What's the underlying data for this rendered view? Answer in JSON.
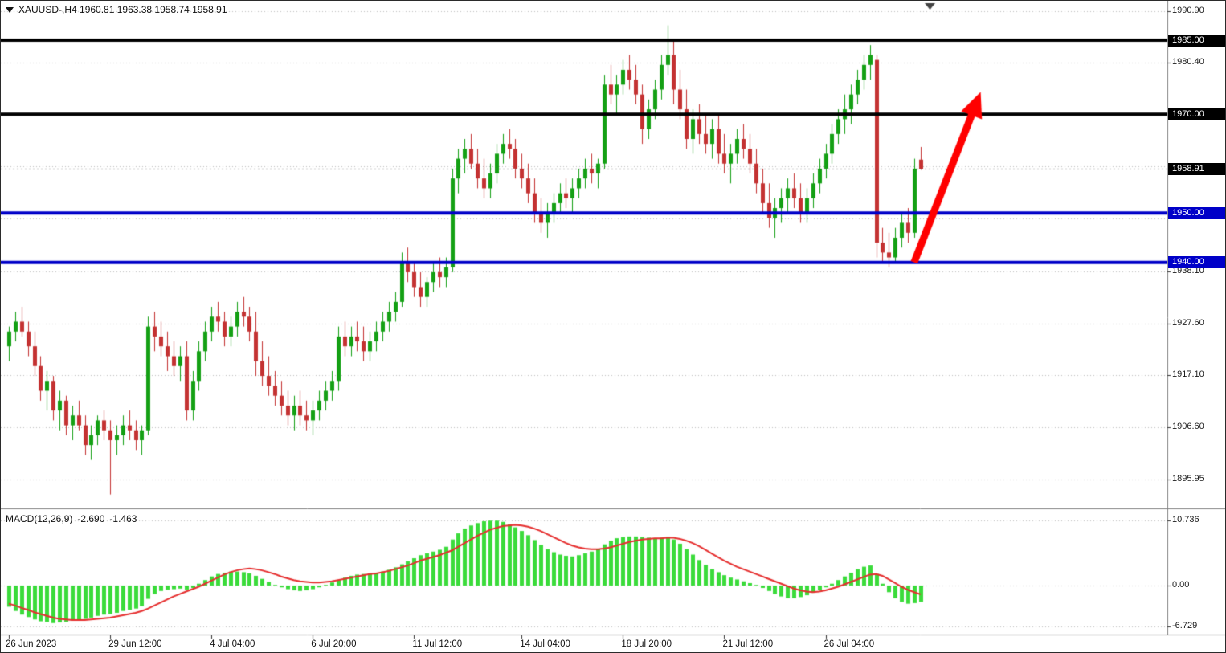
{
  "header": {
    "info_line": "XAUUSD-,H4  1960.81 1963.38 1958.74 1958.91"
  },
  "macd_panel": {
    "title": "MACD(12,26,9)",
    "main_value": "-2.690",
    "signal_value": "-1.463"
  },
  "price_axis": {
    "scale_labels": [
      {
        "text": "1990.90",
        "price": 1990.9
      },
      {
        "text": "1980.40",
        "price": 1980.4
      },
      {
        "text": "1938.10",
        "price": 1938.1
      },
      {
        "text": "1927.60",
        "price": 1927.6
      },
      {
        "text": "1917.10",
        "price": 1917.1
      },
      {
        "text": "1906.60",
        "price": 1906.6
      },
      {
        "text": "1895.95",
        "price": 1895.95
      }
    ],
    "badges": [
      {
        "text": "1985.00",
        "price": 1985.0,
        "type": "black"
      },
      {
        "text": "1970.00",
        "price": 1970.0,
        "type": "black"
      },
      {
        "text": "1958.91",
        "price": 1958.91,
        "type": "black"
      },
      {
        "text": "1950.00",
        "price": 1950.0,
        "type": "blue"
      },
      {
        "text": "1940.00",
        "price": 1940.0,
        "type": "blue"
      }
    ]
  },
  "macd_axis": {
    "labels": [
      {
        "text": "10.736",
        "value": 10.736
      },
      {
        "text": "0.00",
        "value": 0.0
      },
      {
        "text": "-6.729",
        "value": -6.729
      }
    ]
  },
  "colors": {
    "up": "#14A014",
    "down": "#C43232",
    "hline_black": "#000000",
    "hline_blue": "#0000C8",
    "macd_hist": "#3BDB3B",
    "macd_signal": "#E62E2E",
    "arrow": "#FF0000",
    "grid": "#BEBEBE",
    "badge_black_bg": "#000000",
    "badge_blue_bg": "#0000C8"
  },
  "chart_data": {
    "type": "candlestick",
    "symbol": "XAUUSD-",
    "timeframe": "H4",
    "current_ohlc": {
      "open": 1960.81,
      "high": 1963.38,
      "low": 1958.74,
      "close": 1958.91
    },
    "ylim": [
      1890.5,
      1992.0
    ],
    "grid_levels": [
      1990.9,
      1980.4,
      1969.9,
      1959.4,
      1948.9,
      1938.1,
      1927.6,
      1917.1,
      1906.6,
      1895.95
    ],
    "hlines": [
      {
        "price": 1985.0,
        "color": "#000000",
        "width": 4,
        "label": "1985.00"
      },
      {
        "price": 1970.0,
        "color": "#000000",
        "width": 4,
        "label": "1970.00"
      },
      {
        "price": 1950.0,
        "color": "#0000C8",
        "width": 4,
        "label": "1950.00"
      },
      {
        "price": 1940.0,
        "color": "#0000C8",
        "width": 4,
        "label": "1940.00"
      }
    ],
    "bid_line": {
      "price": 1958.91,
      "style": "dotted",
      "color": "#666666"
    },
    "trend_arrow": {
      "from_bar": 143,
      "from_price": 1940.0,
      "to_bar": 153.5,
      "to_price": 1974.5,
      "color": "#FF0000"
    },
    "up_color": "#14A014",
    "down_color": "#C43232",
    "candles": [
      [
        1923,
        1927,
        1920,
        1926
      ],
      [
        1926,
        1930,
        1924,
        1928
      ],
      [
        1928,
        1931,
        1925,
        1926
      ],
      [
        1926,
        1928,
        1921,
        1923
      ],
      [
        1923,
        1926,
        1917,
        1919
      ],
      [
        1919,
        1921,
        1912,
        1914
      ],
      [
        1914,
        1918,
        1910,
        1916
      ],
      [
        1916,
        1917,
        1908,
        1910
      ],
      [
        1910,
        1914,
        1906,
        1912
      ],
      [
        1912,
        1913,
        1905,
        1907
      ],
      [
        1907,
        1911,
        1904,
        1909
      ],
      [
        1909,
        1912,
        1906,
        1907
      ],
      [
        1907,
        1909,
        1901,
        1903
      ],
      [
        1903,
        1907,
        1900,
        1905
      ],
      [
        1905,
        1909,
        1903,
        1908
      ],
      [
        1908,
        1910,
        1904,
        1906
      ],
      [
        1906,
        1908,
        1893,
        1904
      ],
      [
        1904,
        1907,
        1901,
        1905
      ],
      [
        1905,
        1909,
        1903,
        1907
      ],
      [
        1907,
        1910,
        1904,
        1906
      ],
      [
        1906,
        1908,
        1902,
        1904
      ],
      [
        1904,
        1907,
        1901,
        1906
      ],
      [
        1906,
        1929,
        1905,
        1927
      ],
      [
        1927,
        1930,
        1922,
        1925
      ],
      [
        1925,
        1928,
        1921,
        1923
      ],
      [
        1923,
        1926,
        1918,
        1921
      ],
      [
        1921,
        1924,
        1917,
        1919
      ],
      [
        1919,
        1923,
        1916,
        1921
      ],
      [
        1921,
        1924,
        1908,
        1910
      ],
      [
        1910,
        1918,
        1908,
        1916
      ],
      [
        1916,
        1924,
        1914,
        1922
      ],
      [
        1922,
        1928,
        1920,
        1926
      ],
      [
        1926,
        1931,
        1924,
        1929
      ],
      [
        1929,
        1932,
        1926,
        1928
      ],
      [
        1928,
        1930,
        1923,
        1925
      ],
      [
        1925,
        1929,
        1923,
        1927
      ],
      [
        1927,
        1932,
        1925,
        1930
      ],
      [
        1930,
        1933,
        1927,
        1929
      ],
      [
        1929,
        1931,
        1924,
        1926
      ],
      [
        1926,
        1930,
        1917,
        1920
      ],
      [
        1920,
        1924,
        1915,
        1917
      ],
      [
        1917,
        1921,
        1913,
        1915
      ],
      [
        1915,
        1918,
        1911,
        1913
      ],
      [
        1913,
        1916,
        1909,
        1911
      ],
      [
        1911,
        1914,
        1907,
        1909
      ],
      [
        1909,
        1913,
        1906,
        1911
      ],
      [
        1911,
        1914,
        1907,
        1909
      ],
      [
        1909,
        1912,
        1906,
        1908
      ],
      [
        1908,
        1912,
        1905,
        1910
      ],
      [
        1910,
        1914,
        1908,
        1912
      ],
      [
        1912,
        1916,
        1910,
        1914
      ],
      [
        1914,
        1918,
        1912,
        1916
      ],
      [
        1916,
        1927,
        1914,
        1925
      ],
      [
        1925,
        1928,
        1921,
        1923
      ],
      [
        1923,
        1927,
        1921,
        1925
      ],
      [
        1925,
        1928,
        1922,
        1924
      ],
      [
        1924,
        1927,
        1920,
        1922
      ],
      [
        1922,
        1926,
        1920,
        1924
      ],
      [
        1924,
        1928,
        1922,
        1926
      ],
      [
        1926,
        1930,
        1924,
        1928
      ],
      [
        1928,
        1932,
        1926,
        1930
      ],
      [
        1930,
        1934,
        1928,
        1932
      ],
      [
        1932,
        1942,
        1931,
        1940
      ],
      [
        1940,
        1943,
        1936,
        1938
      ],
      [
        1938,
        1940,
        1933,
        1935
      ],
      [
        1935,
        1938,
        1931,
        1933
      ],
      [
        1933,
        1937,
        1931,
        1936
      ],
      [
        1936,
        1940,
        1934,
        1938
      ],
      [
        1938,
        1941,
        1935,
        1937
      ],
      [
        1937,
        1941,
        1935,
        1939
      ],
      [
        1939,
        1959,
        1938,
        1957
      ],
      [
        1957,
        1963,
        1954,
        1961
      ],
      [
        1961,
        1965,
        1958,
        1963
      ],
      [
        1963,
        1966,
        1959,
        1960
      ],
      [
        1960,
        1963,
        1955,
        1957
      ],
      [
        1957,
        1961,
        1953,
        1955
      ],
      [
        1955,
        1960,
        1953,
        1958
      ],
      [
        1958,
        1964,
        1956,
        1962
      ],
      [
        1962,
        1966,
        1960,
        1964
      ],
      [
        1964,
        1967,
        1961,
        1963
      ],
      [
        1963,
        1965,
        1957,
        1959
      ],
      [
        1959,
        1962,
        1955,
        1957
      ],
      [
        1957,
        1960,
        1952,
        1954
      ],
      [
        1954,
        1957,
        1948,
        1950
      ],
      [
        1950,
        1953,
        1946,
        1948
      ],
      [
        1948,
        1952,
        1945,
        1950
      ],
      [
        1950,
        1954,
        1948,
        1952
      ],
      [
        1952,
        1956,
        1950,
        1954
      ],
      [
        1954,
        1957,
        1951,
        1953
      ],
      [
        1953,
        1957,
        1950,
        1955
      ],
      [
        1955,
        1959,
        1953,
        1957
      ],
      [
        1957,
        1961,
        1955,
        1959
      ],
      [
        1959,
        1962,
        1956,
        1958
      ],
      [
        1958,
        1961,
        1955,
        1960
      ],
      [
        1960,
        1978,
        1959,
        1976
      ],
      [
        1976,
        1980,
        1972,
        1974
      ],
      [
        1974,
        1978,
        1970,
        1976
      ],
      [
        1976,
        1981,
        1974,
        1979
      ],
      [
        1979,
        1982,
        1975,
        1977
      ],
      [
        1977,
        1980,
        1972,
        1974
      ],
      [
        1974,
        1976,
        1964,
        1967
      ],
      [
        1967,
        1973,
        1965,
        1971
      ],
      [
        1971,
        1977,
        1969,
        1975
      ],
      [
        1975,
        1982,
        1973,
        1980
      ],
      [
        1980,
        1988,
        1978,
        1982
      ],
      [
        1982,
        1985,
        1972,
        1975
      ],
      [
        1975,
        1979,
        1969,
        1971
      ],
      [
        1971,
        1975,
        1963,
        1965
      ],
      [
        1965,
        1971,
        1962,
        1969
      ],
      [
        1969,
        1972,
        1964,
        1966
      ],
      [
        1966,
        1970,
        1962,
        1964
      ],
      [
        1964,
        1969,
        1961,
        1967
      ],
      [
        1967,
        1970,
        1960,
        1962
      ],
      [
        1962,
        1966,
        1958,
        1960
      ],
      [
        1960,
        1964,
        1956,
        1962
      ],
      [
        1962,
        1967,
        1960,
        1965
      ],
      [
        1965,
        1968,
        1961,
        1963
      ],
      [
        1963,
        1966,
        1958,
        1960
      ],
      [
        1960,
        1963,
        1954,
        1956
      ],
      [
        1956,
        1959,
        1950,
        1952
      ],
      [
        1952,
        1956,
        1947,
        1949
      ],
      [
        1949,
        1953,
        1945,
        1951
      ],
      [
        1951,
        1955,
        1948,
        1953
      ],
      [
        1953,
        1957,
        1950,
        1955
      ],
      [
        1955,
        1958,
        1951,
        1953
      ],
      [
        1953,
        1956,
        1948,
        1950
      ],
      [
        1950,
        1955,
        1948,
        1953
      ],
      [
        1953,
        1958,
        1951,
        1956
      ],
      [
        1956,
        1961,
        1954,
        1959
      ],
      [
        1959,
        1964,
        1957,
        1962
      ],
      [
        1962,
        1968,
        1960,
        1966
      ],
      [
        1966,
        1971,
        1964,
        1969
      ],
      [
        1969,
        1974,
        1966,
        1971
      ],
      [
        1971,
        1976,
        1968,
        1974
      ],
      [
        1974,
        1979,
        1972,
        1977
      ],
      [
        1977,
        1982,
        1975,
        1980
      ],
      [
        1980,
        1984,
        1977,
        1982
      ],
      [
        1981,
        1982,
        1941,
        1944
      ],
      [
        1944,
        1947,
        1940,
        1942
      ],
      [
        1942,
        1946,
        1939,
        1941
      ],
      [
        1941,
        1947,
        1940,
        1945
      ],
      [
        1945,
        1950,
        1943,
        1948
      ],
      [
        1948,
        1951,
        1944,
        1946
      ],
      [
        1946,
        1961,
        1945,
        1959
      ],
      [
        1960.81,
        1963.38,
        1958.74,
        1958.91
      ]
    ],
    "macd": {
      "label": "MACD(12,26,9)",
      "main_value": -2.69,
      "signal_value": -1.463,
      "scale": {
        "max": 10.736,
        "zero": 0.0,
        "min": -6.729
      },
      "hist_color": "#3BDB3B",
      "signal_color": "#E62E2E",
      "histogram": [
        -3.5,
        -4.2,
        -4.8,
        -5.2,
        -5.6,
        -5.9,
        -6.0,
        -6.2,
        -6.1,
        -6.0,
        -5.8,
        -5.6,
        -5.5,
        -5.3,
        -5.0,
        -4.8,
        -4.7,
        -4.5,
        -4.2,
        -4.0,
        -3.8,
        -3.4,
        -2.2,
        -1.4,
        -0.9,
        -0.7,
        -0.6,
        -0.5,
        -0.7,
        -0.4,
        0.3,
        0.9,
        1.5,
        1.9,
        2.1,
        2.3,
        2.3,
        2.2,
        2.0,
        1.6,
        1.1,
        0.6,
        0.1,
        -0.3,
        -0.6,
        -0.8,
        -0.9,
        -0.8,
        -0.6,
        -0.3,
        0.1,
        0.5,
        0.9,
        1.3,
        1.6,
        1.8,
        1.9,
        2.0,
        2.1,
        2.3,
        2.6,
        3.0,
        3.5,
        4.0,
        4.5,
        5.0,
        5.3,
        5.6,
        5.9,
        6.4,
        7.6,
        8.6,
        9.4,
        9.9,
        10.3,
        10.6,
        10.7,
        10.7,
        10.5,
        10.1,
        9.6,
        9.0,
        8.3,
        7.5,
        6.7,
        6.0,
        5.5,
        5.1,
        4.9,
        4.8,
        5.0,
        5.3,
        5.6,
        6.0,
        6.8,
        7.4,
        7.8,
        8.0,
        8.1,
        8.1,
        8.0,
        7.9,
        7.8,
        7.9,
        8.0,
        7.6,
        6.9,
        6.0,
        5.1,
        4.2,
        3.4,
        2.7,
        2.2,
        1.7,
        1.3,
        1.0,
        0.7,
        0.4,
        0.1,
        -0.4,
        -0.9,
        -1.4,
        -1.8,
        -2.1,
        -2.1,
        -1.9,
        -1.6,
        -1.2,
        -0.8,
        -0.3,
        0.3,
        0.9,
        1.5,
        2.1,
        2.7,
        3.1,
        3.3,
        1.9,
        0.3,
        -1.1,
        -2.1,
        -2.7,
        -3.0,
        -2.9,
        -2.69
      ],
      "signal": [
        -3.0,
        -3.3,
        -3.7,
        -4.0,
        -4.4,
        -4.7,
        -5.0,
        -5.3,
        -5.5,
        -5.6,
        -5.7,
        -5.7,
        -5.7,
        -5.6,
        -5.5,
        -5.4,
        -5.3,
        -5.1,
        -4.9,
        -4.7,
        -4.5,
        -4.2,
        -3.8,
        -3.3,
        -2.8,
        -2.3,
        -1.8,
        -1.4,
        -1.0,
        -0.6,
        -0.2,
        0.3,
        0.8,
        1.3,
        1.8,
        2.2,
        2.5,
        2.7,
        2.8,
        2.7,
        2.5,
        2.2,
        1.9,
        1.5,
        1.2,
        0.9,
        0.7,
        0.6,
        0.5,
        0.5,
        0.6,
        0.7,
        0.9,
        1.1,
        1.3,
        1.5,
        1.7,
        1.9,
        2.0,
        2.2,
        2.4,
        2.7,
        3.0,
        3.3,
        3.7,
        4.1,
        4.4,
        4.7,
        5.0,
        5.4,
        5.8,
        6.4,
        7.0,
        7.6,
        8.2,
        8.7,
        9.2,
        9.5,
        9.8,
        9.9,
        10.0,
        9.9,
        9.7,
        9.4,
        9.0,
        8.5,
        8.0,
        7.5,
        7.0,
        6.6,
        6.3,
        6.1,
        6.0,
        6.0,
        6.1,
        6.3,
        6.6,
        6.9,
        7.2,
        7.4,
        7.6,
        7.7,
        7.8,
        7.8,
        7.9,
        7.9,
        7.7,
        7.4,
        7.0,
        6.5,
        5.9,
        5.3,
        4.7,
        4.1,
        3.6,
        3.1,
        2.7,
        2.3,
        1.9,
        1.5,
        1.1,
        0.7,
        0.3,
        -0.1,
        -0.5,
        -0.8,
        -1.0,
        -1.1,
        -1.0,
        -0.8,
        -0.5,
        -0.2,
        0.2,
        0.6,
        1.0,
        1.4,
        1.8,
        1.9,
        1.6,
        1.0,
        0.4,
        -0.2,
        -0.7,
        -1.1,
        -1.463
      ]
    },
    "time_ticks": [
      {
        "label": "26 Jun 2023",
        "bar": 0
      },
      {
        "label": "29 Jun 12:00",
        "bar": 16
      },
      {
        "label": "4 Jul 04:00",
        "bar": 32
      },
      {
        "label": "6 Jul 20:00",
        "bar": 48
      },
      {
        "label": "11 Jul 12:00",
        "bar": 64
      },
      {
        "label": "14 Jul 04:00",
        "bar": 81
      },
      {
        "label": "18 Jul 20:00",
        "bar": 97
      },
      {
        "label": "21 Jul 12:00",
        "bar": 113
      },
      {
        "label": "26 Jul 04:00",
        "bar": 129
      }
    ]
  }
}
